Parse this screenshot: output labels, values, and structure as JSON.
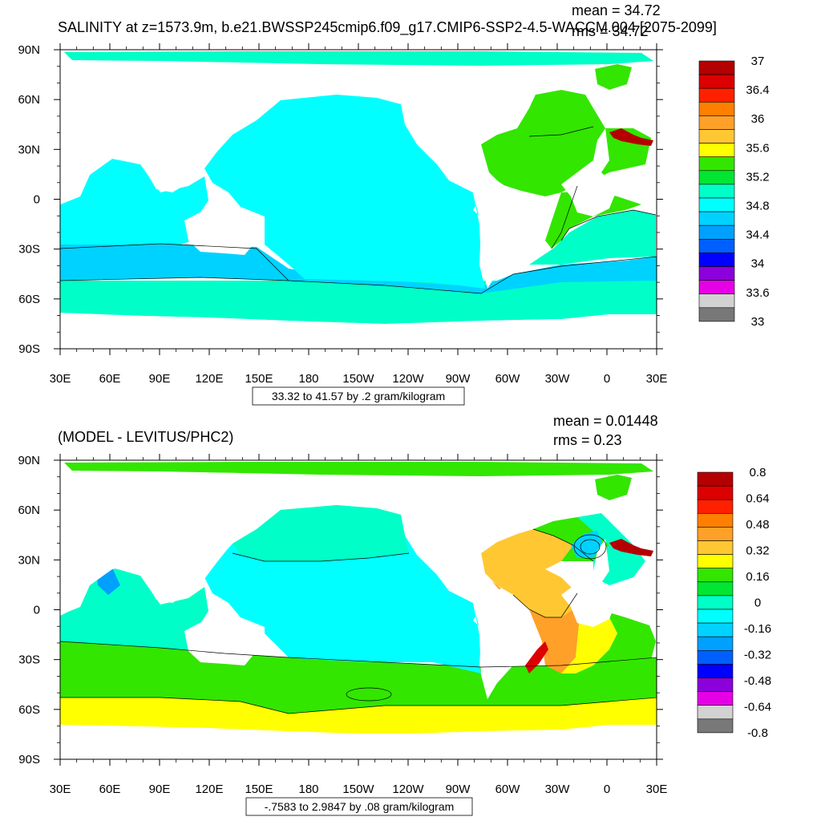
{
  "chart_data": [
    {
      "type": "heatmap",
      "title": "SALINITY at z=1573.9m, b.e21.BWSSP245cmip6.f09_g17.CMIP6-SSP2-4.5-WACCM.004 [2075-2099]",
      "mean_label": "mean = 34.72",
      "rms_label": "rms = 34.72",
      "range_label": "33.32 to 41.57 by .2 gram/kilogram",
      "xlabel": "",
      "ylabel": "",
      "x_ticks": [
        "30E",
        "60E",
        "90E",
        "120E",
        "150E",
        "180",
        "150W",
        "120W",
        "90W",
        "60W",
        "30W",
        "0",
        "30E"
      ],
      "y_ticks": [
        "90N",
        "60N",
        "30N",
        "0",
        "30S",
        "60S",
        "90S"
      ],
      "xlim": [
        30,
        390
      ],
      "ylim": [
        -90,
        90
      ],
      "colorbar": {
        "labels": [
          "37",
          "36.4",
          "36",
          "35.6",
          "35.2",
          "34.8",
          "34.4",
          "34",
          "33.6",
          "33"
        ],
        "colors": [
          "#b40000",
          "#dc0000",
          "#ff2000",
          "#ff8000",
          "#ffa028",
          "#ffc832",
          "#ffff00",
          "#32e600",
          "#00e632",
          "#00ffc8",
          "#00ffff",
          "#00d2ff",
          "#00a0ff",
          "#0060ff",
          "#0000ff",
          "#8c00dc",
          "#e600e6",
          "#d2d2d2",
          "#787878"
        ]
      }
    },
    {
      "type": "heatmap",
      "title": "(MODEL - LEVITUS/PHC2)",
      "mean_label": "mean = 0.01448",
      "rms_label": "rms = 0.23",
      "range_label": "-.7583 to 2.9847 by .08 gram/kilogram",
      "xlabel": "",
      "ylabel": "",
      "x_ticks": [
        "30E",
        "60E",
        "90E",
        "120E",
        "150E",
        "180",
        "150W",
        "120W",
        "90W",
        "60W",
        "30W",
        "0",
        "30E"
      ],
      "y_ticks": [
        "90N",
        "60N",
        "30N",
        "0",
        "30S",
        "60S",
        "90S"
      ],
      "xlim": [
        30,
        390
      ],
      "ylim": [
        -90,
        90
      ],
      "colorbar": {
        "labels": [
          "0.8",
          "0.64",
          "0.48",
          "0.32",
          "0.16",
          "0",
          "-0.16",
          "-0.32",
          "-0.48",
          "-0.64",
          "-0.8"
        ],
        "colors": [
          "#b40000",
          "#dc0000",
          "#ff2000",
          "#ff8000",
          "#ffa028",
          "#ffc832",
          "#ffff00",
          "#32e600",
          "#00e632",
          "#00ffc8",
          "#00ffff",
          "#00d2ff",
          "#00a0ff",
          "#0060ff",
          "#0000ff",
          "#8c00dc",
          "#e600e6",
          "#d2d2d2",
          "#787878"
        ]
      }
    }
  ]
}
